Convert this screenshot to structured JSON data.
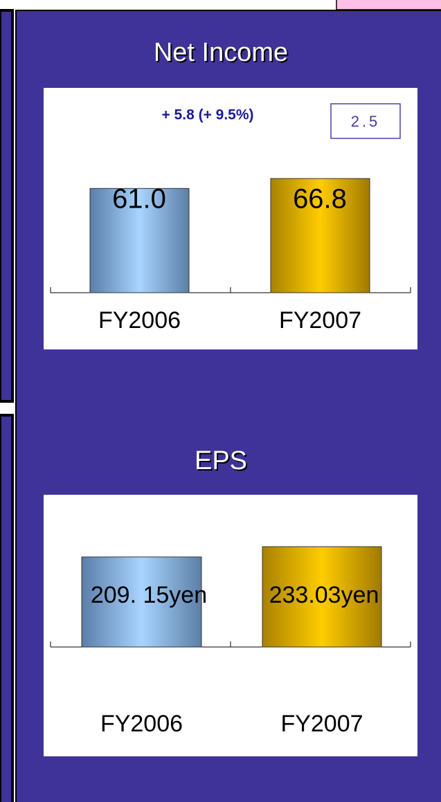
{
  "chart_data": [
    {
      "type": "bar",
      "title": "Net Income",
      "annotations": [
        "+ 5.8 (+ 9.5%)",
        "2.5"
      ],
      "categories": [
        "FY2006",
        "FY2007"
      ],
      "values": [
        61.0,
        66.8
      ],
      "value_labels": [
        "61.0",
        "66.8"
      ],
      "colors": [
        "#8db8e8",
        "#f0c000"
      ]
    },
    {
      "type": "bar",
      "title": "EPS",
      "categories": [
        "FY2006",
        "FY2007"
      ],
      "values": [
        209.15,
        233.03
      ],
      "value_labels": [
        "209. 15yen",
        "233.03yen"
      ],
      "colors": [
        "#8db8e8",
        "#f0c000"
      ]
    }
  ]
}
